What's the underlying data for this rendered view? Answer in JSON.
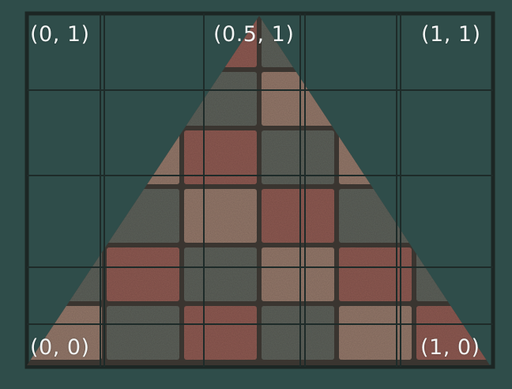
{
  "labels": {
    "top_left": "(0, 1)",
    "top_middle": "(0.5, 1)",
    "top_right": "(1, 1)",
    "bottom_left": "(0, 0)",
    "bottom_right": "(1, 0)"
  },
  "colors": {
    "background": "#2f4d4a",
    "frame": "#1c2624",
    "grid_line": "#1e2b29",
    "label_text": "#f2f5f4",
    "brick_red": "#8e5a52",
    "brick_gray": "#5d615a",
    "brick_tan": "#94786a",
    "mortar": "#3a3530"
  },
  "texture": {
    "name": "brick-pavers-texture",
    "brick_pattern": [
      [
        "red",
        "gray",
        "red",
        "gray",
        "red",
        "gray"
      ],
      [
        "tan",
        "red",
        "gray",
        "tan",
        "gray",
        "red"
      ],
      [
        "gray",
        "tan",
        "red",
        "gray",
        "tan",
        "gray"
      ],
      [
        "red",
        "gray",
        "tan",
        "red",
        "gray",
        "tan"
      ],
      [
        "gray",
        "red",
        "gray",
        "tan",
        "red",
        "gray"
      ],
      [
        "tan",
        "gray",
        "red",
        "gray",
        "tan",
        "red"
      ]
    ]
  }
}
